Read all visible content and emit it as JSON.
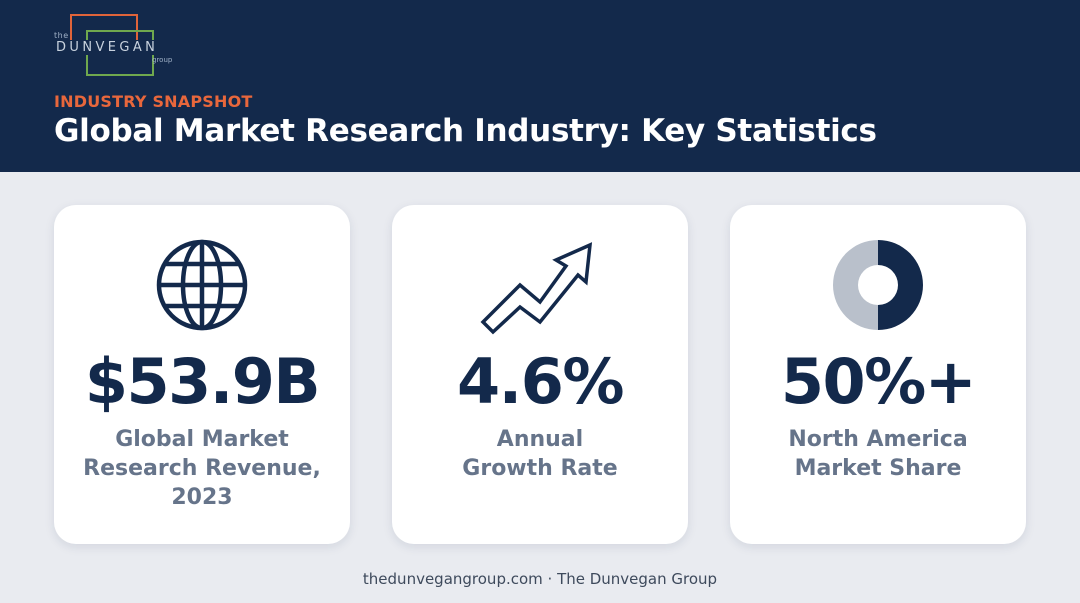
{
  "logo": {
    "the": "the",
    "name": "DUNVEGAN",
    "group": "group"
  },
  "header": {
    "eyebrow": "INDUSTRY SNAPSHOT",
    "title": "Global Market Research Industry: Key Statistics"
  },
  "cards": [
    {
      "icon": "globe-icon",
      "value": "$53.9B",
      "label_lines": [
        "Global Market",
        "Research Revenue,",
        "2023"
      ]
    },
    {
      "icon": "trend-up-arrow-icon",
      "value": "4.6%",
      "label_lines": [
        "Annual",
        "Growth Rate"
      ]
    },
    {
      "icon": "donut-chart-icon",
      "value": "50%+",
      "label_lines": [
        "North America",
        "Market Share"
      ],
      "donut_fraction": 0.5
    }
  ],
  "footer": "thedunvegangroup.com · The Dunvegan Group",
  "colors": {
    "navy": "#13294b",
    "orange": "#e8673c",
    "green": "#6fa84e",
    "gray_text": "#66748a",
    "donut_light": "#b9c0cb",
    "background": "#e9ebf0"
  }
}
